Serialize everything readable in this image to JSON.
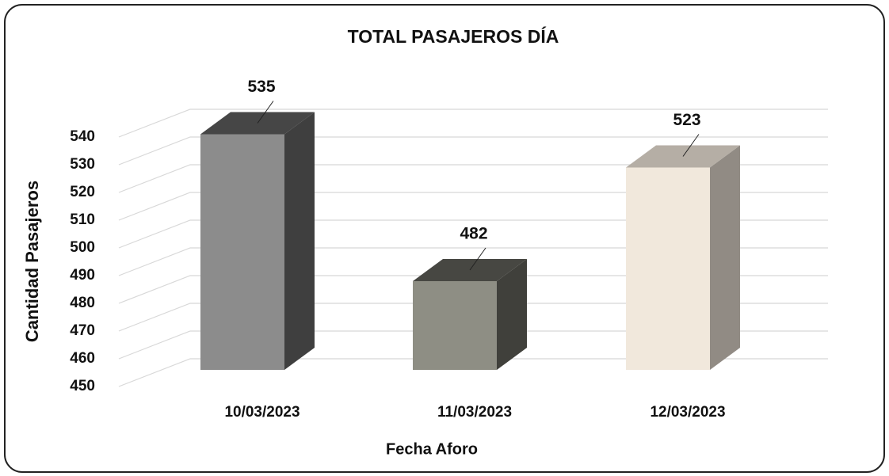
{
  "chart_data": {
    "type": "bar3d",
    "title": "TOTAL PASAJEROS DÍA",
    "categories": [
      "10/03/2023",
      "11/03/2023",
      "12/03/2023"
    ],
    "values": [
      535,
      482,
      523
    ],
    "colors": [
      "#8c8c8c",
      "#8e8e84",
      "#f1e8dc"
    ],
    "ylim": [
      450,
      550
    ],
    "yticks": [
      450,
      460,
      470,
      480,
      490,
      500,
      510,
      520,
      530,
      540
    ],
    "ylabel": "Cantidad Pasajeros",
    "xlabel": "Fecha Aforo",
    "grid": true
  }
}
